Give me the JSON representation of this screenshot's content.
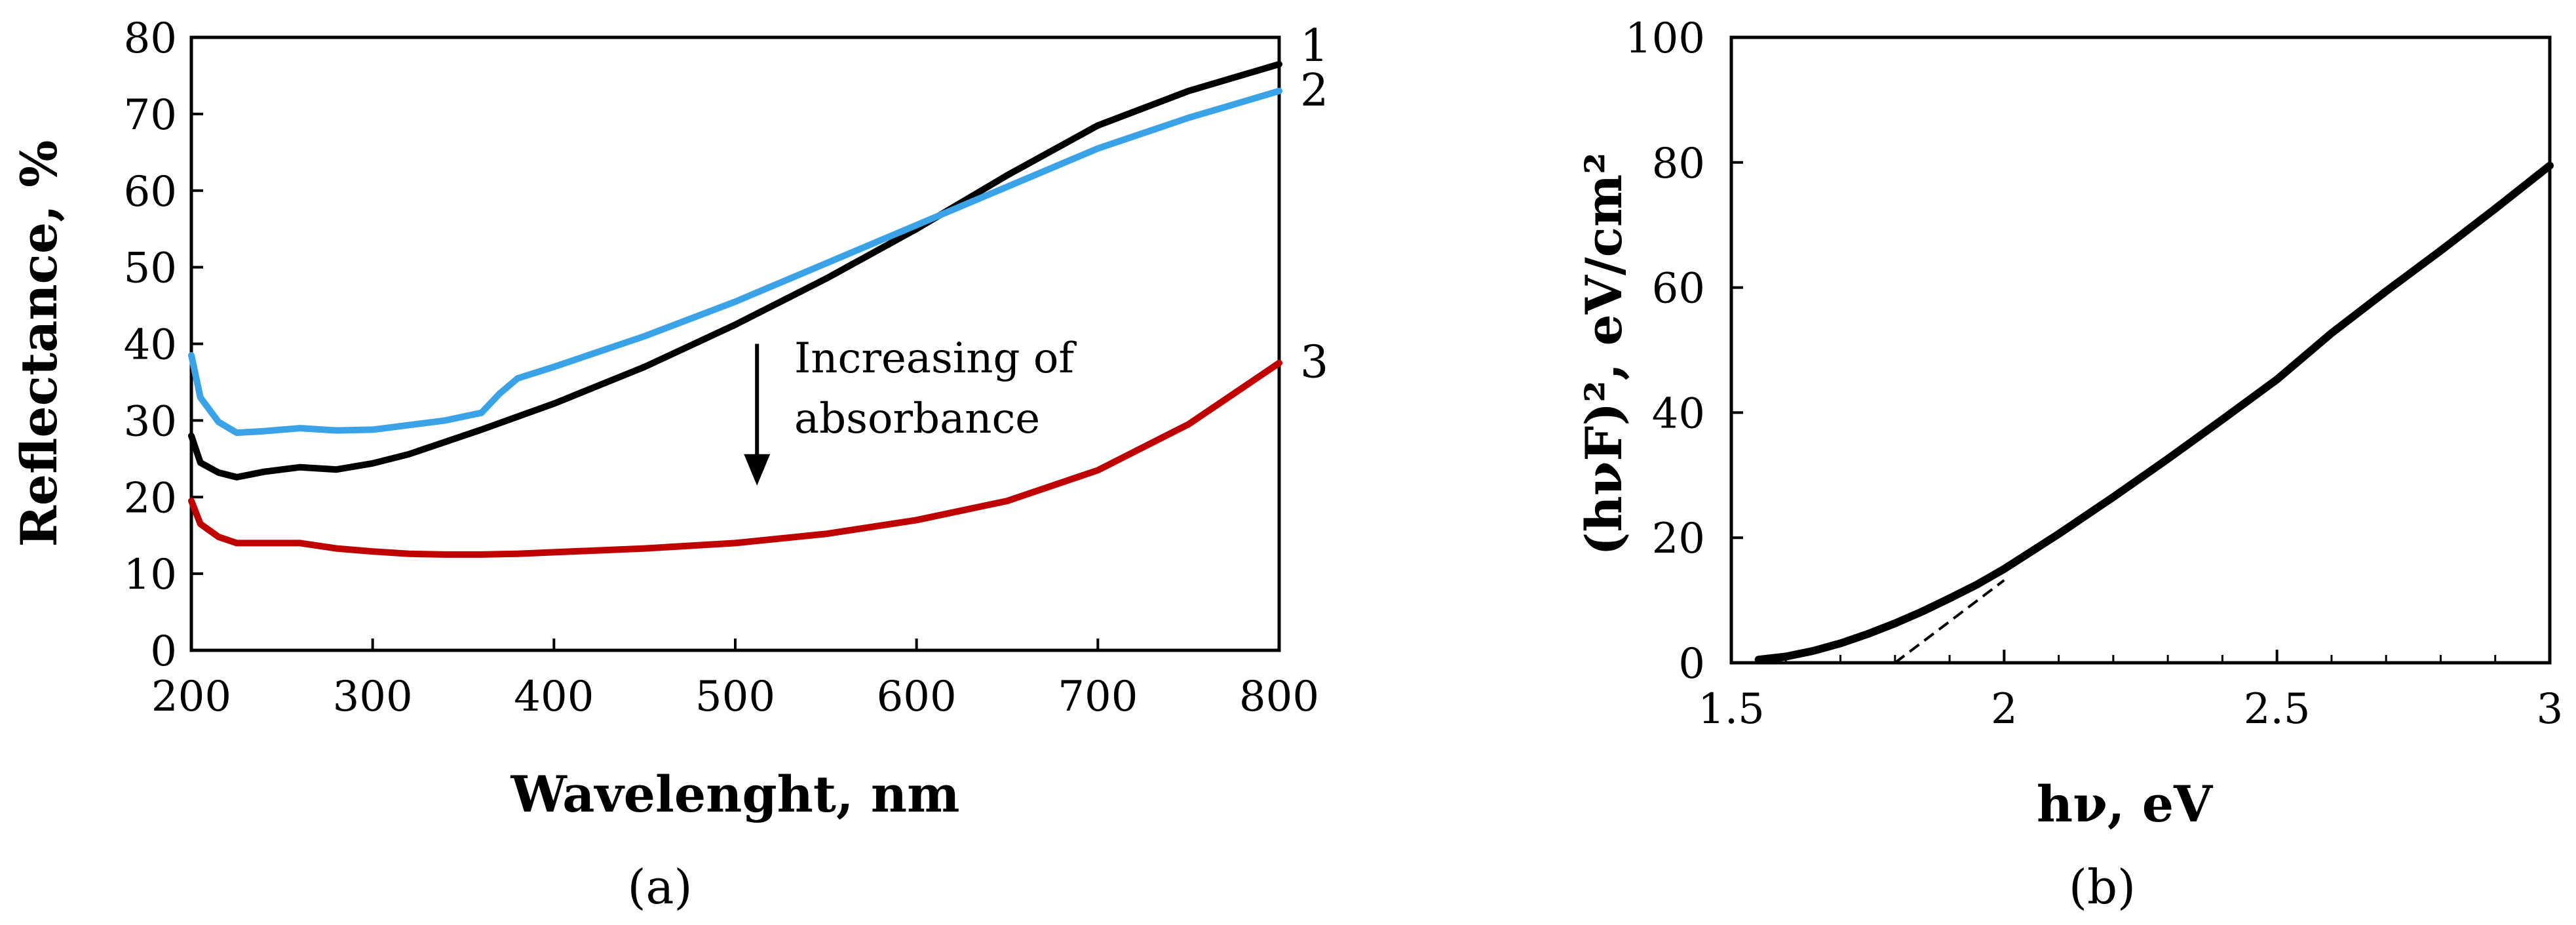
{
  "chart_data": [
    {
      "type": "line",
      "panel_label": "(a)",
      "title": "",
      "xlabel": "Wavelenght, nm",
      "ylabel": "Reflectance, %",
      "xlim": [
        200,
        800
      ],
      "ylim": [
        0,
        80
      ],
      "xticks": [
        200,
        300,
        400,
        500,
        600,
        700,
        800
      ],
      "yticks": [
        0,
        10,
        20,
        30,
        40,
        50,
        60,
        70,
        80
      ],
      "series": [
        {
          "name": "1",
          "color": "#000000",
          "x": [
            200,
            205,
            215,
            225,
            240,
            260,
            280,
            300,
            320,
            340,
            360,
            380,
            400,
            450,
            500,
            550,
            600,
            650,
            700,
            750,
            800
          ],
          "y": [
            28,
            24.5,
            23.2,
            22.6,
            23.3,
            23.9,
            23.6,
            24.4,
            25.6,
            27.2,
            28.8,
            30.5,
            32.2,
            37,
            42.5,
            48.5,
            55,
            62,
            68.5,
            73,
            76.5
          ]
        },
        {
          "name": "2",
          "color": "#3aa3e8",
          "x": [
            200,
            205,
            215,
            225,
            240,
            260,
            280,
            300,
            320,
            340,
            360,
            370,
            380,
            400,
            450,
            500,
            550,
            600,
            650,
            700,
            750,
            800
          ],
          "y": [
            38.5,
            33,
            29.8,
            28.4,
            28.6,
            29,
            28.7,
            28.8,
            29.4,
            30,
            31,
            33.5,
            35.5,
            37,
            41,
            45.5,
            50.5,
            55.5,
            60.5,
            65.5,
            69.5,
            73
          ]
        },
        {
          "name": "3",
          "color": "#c00000",
          "x": [
            200,
            205,
            215,
            225,
            240,
            260,
            280,
            300,
            320,
            340,
            360,
            380,
            400,
            450,
            500,
            550,
            600,
            650,
            700,
            750,
            800
          ],
          "y": [
            19.5,
            16.5,
            14.8,
            14,
            14,
            14,
            13.3,
            12.9,
            12.6,
            12.5,
            12.5,
            12.6,
            12.8,
            13.3,
            14,
            15.2,
            17,
            19.5,
            23.5,
            29.5,
            37.5
          ]
        }
      ],
      "annotations": {
        "text_line1": "Increasing of",
        "text_line2": "absorbance",
        "arrow_x": 512,
        "arrow_y_from": 40,
        "arrow_y_to": 21.5
      }
    },
    {
      "type": "line",
      "panel_label": "(b)",
      "title": "",
      "xlabel": "hν, eV",
      "ylabel": "(hνF)², eV/cm²",
      "xlim": [
        1.5,
        3
      ],
      "ylim": [
        0,
        100
      ],
      "xticks": [
        "1.5",
        "2",
        "2.5",
        "3"
      ],
      "yticks": [
        "0",
        "20",
        "40",
        "60",
        "80",
        "100"
      ],
      "series": [
        {
          "name": "(hνF)²",
          "color": "#000000",
          "x": [
            1.55,
            1.6,
            1.65,
            1.7,
            1.75,
            1.8,
            1.85,
            1.9,
            1.95,
            2.0,
            2.05,
            2.1,
            2.2,
            2.3,
            2.4,
            2.5,
            2.6,
            2.7,
            2.8,
            2.9,
            3.0
          ],
          "y": [
            0.5,
            1,
            1.9,
            3.1,
            4.6,
            6.3,
            8.2,
            10.3,
            12.5,
            15,
            17.8,
            20.6,
            26.5,
            32.6,
            38.9,
            45.3,
            52.7,
            59.4,
            65.9,
            72.6,
            79.5
          ]
        }
      ],
      "tangent": {
        "x": [
          1.8,
          2.0
        ],
        "y": [
          0,
          13.2
        ]
      }
    }
  ]
}
